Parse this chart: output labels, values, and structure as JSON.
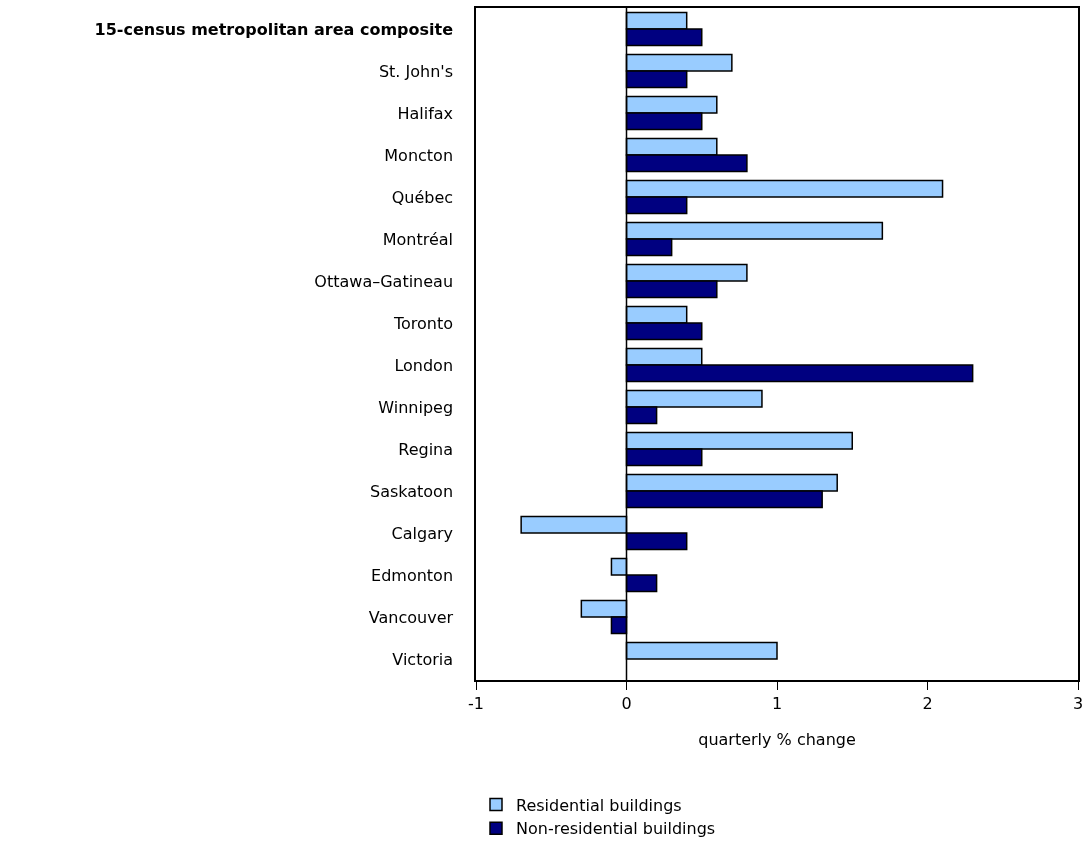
{
  "chart_data": {
    "type": "bar",
    "orientation": "horizontal",
    "xlabel": "quarterly % change",
    "categories": [
      "15-census metropolitan area composite",
      "St. John's",
      "Halifax",
      "Moncton",
      "Québec",
      "Montréal",
      "Ottawa–Gatineau",
      "Toronto",
      "London",
      "Winnipeg",
      "Regina",
      "Saskatoon",
      "Calgary",
      "Edmonton",
      "Vancouver",
      "Victoria"
    ],
    "series": [
      {
        "name": "Residential buildings",
        "color": "#99ccff",
        "values": [
          0.4,
          0.7,
          0.6,
          0.6,
          2.1,
          1.7,
          0.8,
          0.4,
          0.5,
          0.9,
          1.5,
          1.4,
          -0.7,
          -0.1,
          -0.3,
          1.0
        ]
      },
      {
        "name": "Non-residential buildings",
        "color": "#000080",
        "values": [
          0.5,
          0.4,
          0.5,
          0.8,
          0.4,
          0.3,
          0.6,
          0.5,
          2.3,
          0.2,
          0.5,
          1.3,
          0.4,
          0.2,
          -0.1,
          null
        ]
      }
    ],
    "xlim": [
      -1,
      3
    ],
    "xticks": [
      -1,
      0,
      1,
      2,
      3
    ],
    "grid": false,
    "ref_lines": [
      {
        "axis": "x",
        "value": 0,
        "color": "#000000"
      }
    ],
    "legend": "bottom left"
  }
}
